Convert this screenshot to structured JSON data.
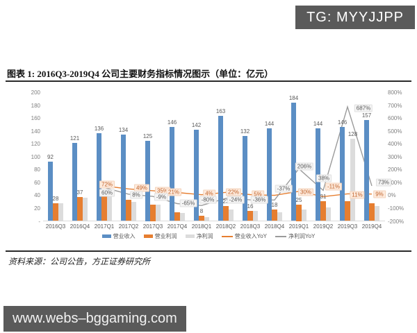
{
  "badge": {
    "text": "TG: MYYJJPP"
  },
  "figure": {
    "title": "图表 1:  2016Q3-2019Q4 公司主要财务指标情况图示（单位：亿元）",
    "source": "资料来源：公司公告，方正证券研究所"
  },
  "watermark": {
    "text": "www.webs–bggaming.com"
  },
  "chart_data": {
    "type": "bar",
    "subtype": "grouped-bars-with-yoy-lines",
    "categories": [
      "2016Q3",
      "2016Q4",
      "2017Q1",
      "2017Q2",
      "2017Q3",
      "2017Q4",
      "2018Q1",
      "2018Q2",
      "2018Q3",
      "2018Q4",
      "2019Q1",
      "2019Q2",
      "2019Q3",
      "2019Q4"
    ],
    "left_axis": {
      "min": 0,
      "max": 200,
      "ticks": [
        "200",
        "180",
        "160",
        "140",
        "120",
        "100",
        "80",
        "60",
        "40",
        "20",
        "-"
      ]
    },
    "right_axis": {
      "min": -200,
      "max": 800,
      "ticks": [
        "800%",
        "700%",
        "600%",
        "500%",
        "400%",
        "300%",
        "200%",
        "100%",
        "0%",
        "-100%",
        "-200%"
      ]
    },
    "grid": "off",
    "legend_position": "bottom",
    "series": [
      {
        "key": "revenue",
        "name": "营业收入",
        "type": "bar",
        "color": "#5b8ec4",
        "values": [
          92,
          121,
          136,
          134,
          125,
          146,
          142,
          163,
          132,
          144,
          184,
          144,
          146,
          157
        ],
        "shown_labels": [
          "92",
          "121",
          "136",
          "134",
          "125",
          "146",
          "142",
          "163",
          "132",
          "144",
          "184",
          "144",
          "146",
          "157"
        ]
      },
      {
        "key": "op_profit",
        "name": "营业利润",
        "type": "bar",
        "color": "#e67e30",
        "values": [
          28,
          37,
          47,
          33,
          25,
          14,
          8,
          23,
          16,
          18,
          25,
          31,
          31,
          28
        ],
        "shown_labels": [
          "28",
          "37",
          null,
          null,
          null,
          null,
          "8",
          "23",
          "16",
          "18",
          "25",
          "31",
          null,
          null
        ]
      },
      {
        "key": "net_profit",
        "name": "净利润",
        "type": "bar",
        "color": "#dcdcdc",
        "values": [
          27,
          36,
          44,
          30,
          25,
          12,
          6,
          18,
          16,
          13,
          18,
          21,
          128,
          23
        ],
        "shown_labels": [
          null,
          null,
          null,
          null,
          null,
          null,
          null,
          null,
          null,
          null,
          null,
          null,
          "128",
          null
        ]
      },
      {
        "key": "revenue_yoy",
        "name": "营业收入YoY",
        "type": "line",
        "color": "#e67e30",
        "values_pct": [
          null,
          null,
          72,
          49,
          35,
          21,
          4,
          22,
          5,
          -1,
          30,
          -11,
          11,
          9
        ],
        "shown_labels": [
          null,
          null,
          "72%",
          "49%",
          "35%",
          "21%",
          "4%",
          "22%",
          "5%",
          null,
          "30%",
          "-11%",
          "11%",
          "9%"
        ]
      },
      {
        "key": "net_profit_yoy",
        "name": "净利润YoY",
        "type": "line",
        "color": "#9b9b9b",
        "values_pct": [
          null,
          null,
          60,
          8,
          -9,
          -65,
          -80,
          -24,
          -36,
          -37,
          206,
          38,
          687,
          73
        ],
        "shown_labels": [
          null,
          null,
          "60%",
          "8%",
          "-9%",
          "-65%",
          "-80%",
          "-24%",
          "-36%",
          "-37%",
          "206%",
          "38%",
          "687%",
          "73%"
        ]
      }
    ]
  }
}
